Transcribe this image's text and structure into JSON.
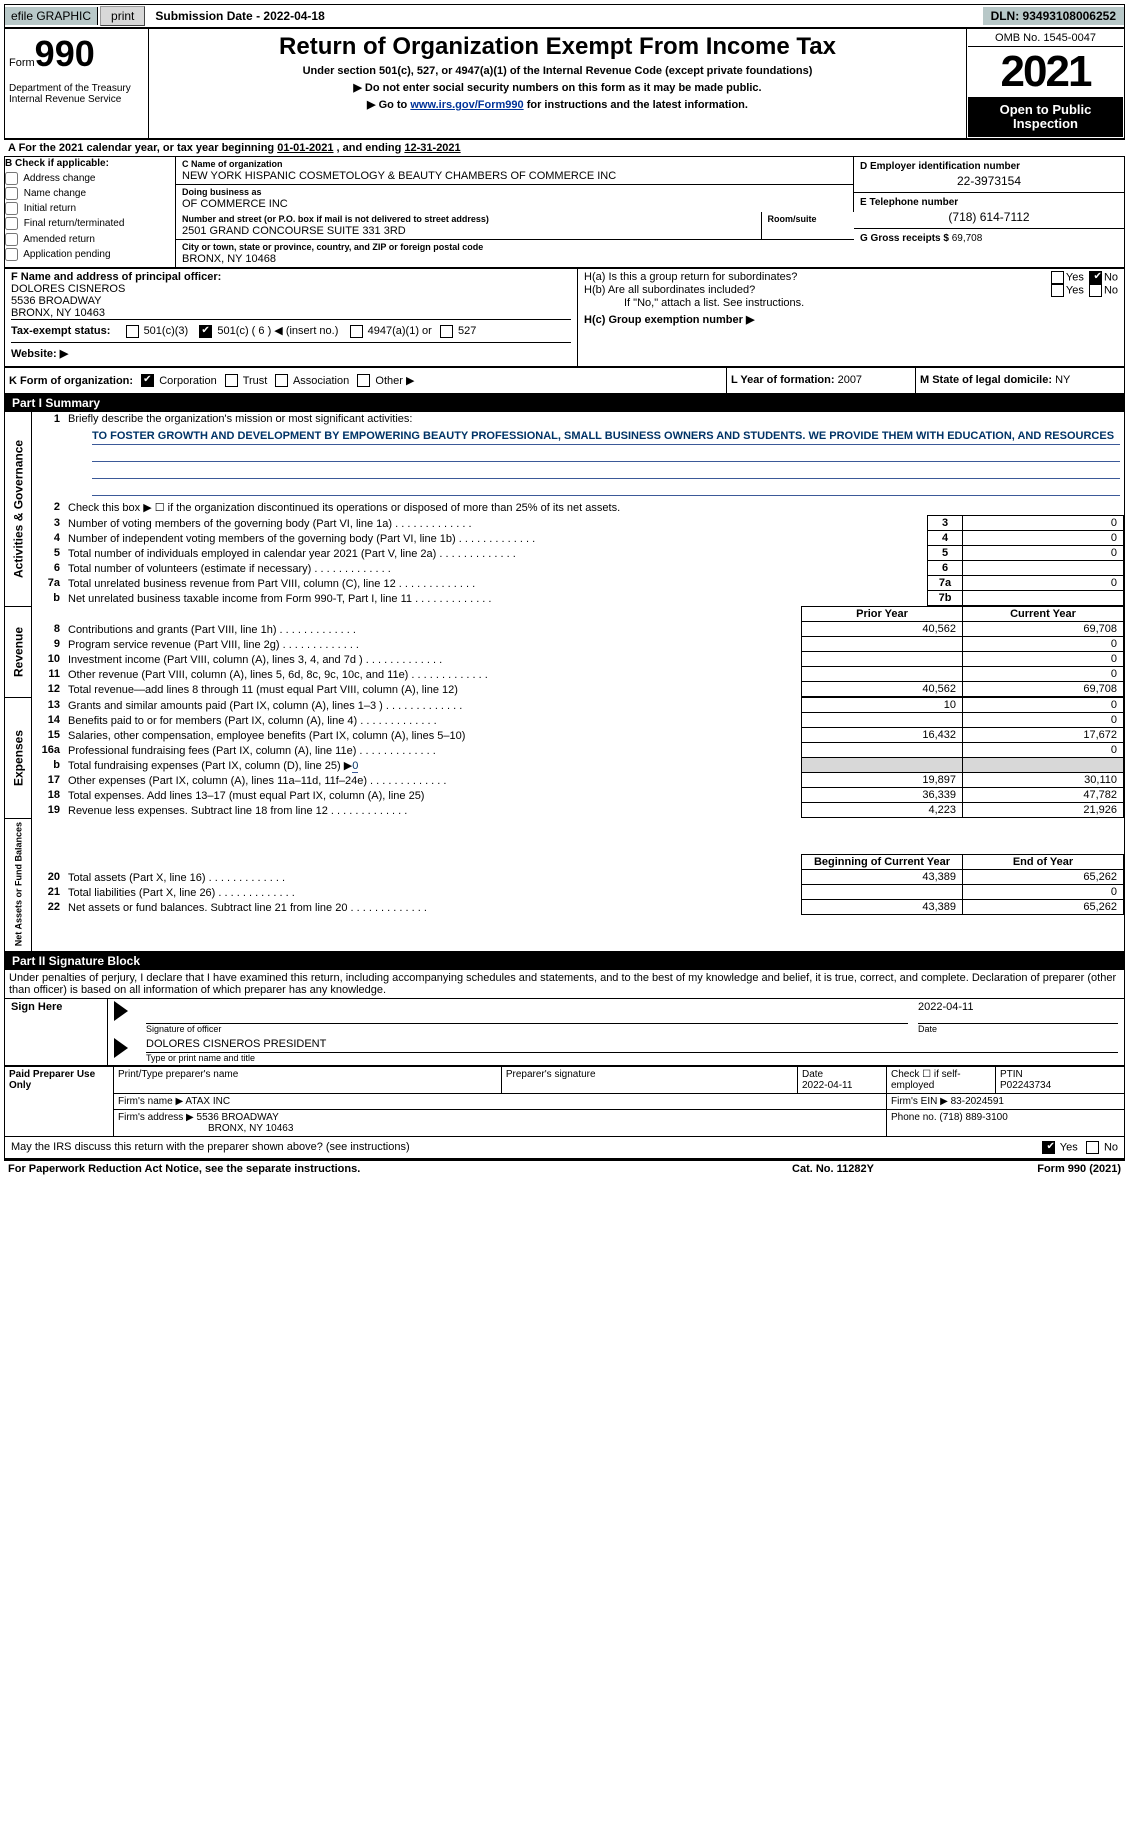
{
  "topbar": {
    "efile_lbl": "efile GRAPHIC",
    "print_btn": "print",
    "submission": "Submission Date - 2022-04-18",
    "dln": "DLN: 93493108006252"
  },
  "header": {
    "form_word": "Form",
    "form_num": "990",
    "dept": "Department of the Treasury",
    "irs": "Internal Revenue Service",
    "title": "Return of Organization Exempt From Income Tax",
    "sub1": "Under section 501(c), 527, or 4947(a)(1) of the Internal Revenue Code (except private foundations)",
    "sub2": "Do not enter social security numbers on this form as it may be made public.",
    "sub3_pre": "Go to ",
    "sub3_link": "www.irs.gov/Form990",
    "sub3_post": " for instructions and the latest information.",
    "omb": "OMB No. 1545-0047",
    "year": "2021",
    "open": "Open to Public Inspection"
  },
  "secA": {
    "text_a": "A For the 2021 calendar year, or tax year beginning ",
    "begin": "01-01-2021",
    "mid": "  , and ending ",
    "end": "12-31-2021"
  },
  "colB": {
    "hdr": "B Check if applicable:",
    "items": [
      "Address change",
      "Name change",
      "Initial return",
      "Final return/terminated",
      "Amended return",
      "Application pending"
    ]
  },
  "colC": {
    "name_lbl": "C Name of organization",
    "name": "NEW YORK HISPANIC COSMETOLOGY & BEAUTY CHAMBERS OF COMMERCE INC",
    "dba_lbl": "Doing business as",
    "dba": "OF COMMERCE INC",
    "addr_lbl": "Number and street (or P.O. box if mail is not delivered to street address)",
    "addr": "2501 GRAND CONCOURSE SUITE 331 3RD",
    "room_lbl": "Room/suite",
    "city_lbl": "City or town, state or province, country, and ZIP or foreign postal code",
    "city": "BRONX, NY  10468"
  },
  "colD": {
    "ein_lbl": "D Employer identification number",
    "ein": "22-3973154",
    "tel_lbl": "E Telephone number",
    "tel": "(718) 614-7112",
    "gross_lbl": "G Gross receipts $",
    "gross": "69,708"
  },
  "rowF": {
    "lblF": "F Name and address of principal officer:",
    "name": "DOLORES CISNEROS",
    "addr1": "5536 BROADWAY",
    "addr2": "BRONX, NY  10463",
    "lblI": "Tax-exempt status:",
    "i_501c3": "501(c)(3)",
    "i_501c": "501(c) (",
    "i_501c_n": "6",
    "i_501c_post": ") ◀ (insert no.)",
    "i_4947": "4947(a)(1) or",
    "i_527": "527",
    "lblJ": "Website: ▶"
  },
  "rowH": {
    "ha": "H(a)  Is this a group return for subordinates?",
    "hb": "H(b)  Are all subordinates included?",
    "hb_note": "If \"No,\" attach a list. See instructions.",
    "hc": "H(c)  Group exemption number ▶",
    "yes": "Yes",
    "no": "No"
  },
  "rowK": {
    "lbl": "K Form of organization:",
    "corp": "Corporation",
    "trust": "Trust",
    "assoc": "Association",
    "other": "Other ▶",
    "l_lbl": "L Year of formation:",
    "l_val": "2007",
    "m_lbl": "M State of legal domicile:",
    "m_val": "NY"
  },
  "part1": {
    "hdr": "Part I     Summary",
    "l1": "Briefly describe the organization's mission or most significant activities:",
    "mission": "TO FOSTER GROWTH AND DEVELOPMENT BY EMPOWERING BEAUTY PROFESSIONAL, SMALL BUSINESS OWNERS AND STUDENTS. WE PROVIDE THEM WITH EDUCATION, AND RESOURCES",
    "l2": "Check this box ▶ ☐  if the organization discontinued its operations or disposed of more than 25% of its net assets.",
    "l3": "Number of voting members of the governing body (Part VI, line 1a)",
    "l4": "Number of independent voting members of the governing body (Part VI, line 1b)",
    "l5": "Total number of individuals employed in calendar year 2021 (Part V, line 2a)",
    "l6": "Total number of volunteers (estimate if necessary)",
    "l7a": "Total unrelated business revenue from Part VIII, column (C), line 12",
    "l7b": "Net unrelated business taxable income from Form 990-T, Part I, line 11",
    "v3": "0",
    "v4": "0",
    "v5": "0",
    "v6": "",
    "v7a": "0",
    "v7b": "",
    "prior_hdr": "Prior Year",
    "curr_hdr": "Current Year",
    "l8": "Contributions and grants (Part VIII, line 1h)",
    "l9": "Program service revenue (Part VIII, line 2g)",
    "l10": "Investment income (Part VIII, column (A), lines 3, 4, and 7d )",
    "l11": "Other revenue (Part VIII, column (A), lines 5, 6d, 8c, 9c, 10c, and 11e)",
    "l12": "Total revenue—add lines 8 through 11 (must equal Part VIII, column (A), line 12)",
    "p8": "40,562",
    "c8": "69,708",
    "p9": "",
    "c9": "0",
    "p10": "",
    "c10": "0",
    "p11": "",
    "c11": "0",
    "p12": "40,562",
    "c12": "69,708",
    "l13": "Grants and similar amounts paid (Part IX, column (A), lines 1–3 )",
    "l14": "Benefits paid to or for members (Part IX, column (A), line 4)",
    "l15": "Salaries, other compensation, employee benefits (Part IX, column (A), lines 5–10)",
    "l16a": "Professional fundraising fees (Part IX, column (A), line 11e)",
    "l16b_pre": "Total fundraising expenses (Part IX, column (D), line 25) ▶",
    "l16b_val": "0",
    "l17": "Other expenses (Part IX, column (A), lines 11a–11d, 11f–24e)",
    "l18": "Total expenses. Add lines 13–17 (must equal Part IX, column (A), line 25)",
    "l19": "Revenue less expenses. Subtract line 18 from line 12",
    "p13": "10",
    "c13": "0",
    "p14": "",
    "c14": "0",
    "p15": "16,432",
    "c15": "17,672",
    "p16a": "",
    "c16a": "0",
    "p17": "19,897",
    "c17": "30,110",
    "p18": "36,339",
    "c18": "47,782",
    "p19": "4,223",
    "c19": "21,926",
    "boy_hdr": "Beginning of Current Year",
    "eoy_hdr": "End of Year",
    "l20": "Total assets (Part X, line 16)",
    "l21": "Total liabilities (Part X, line 26)",
    "l22": "Net assets or fund balances. Subtract line 21 from line 20",
    "p20": "43,389",
    "c20": "65,262",
    "p21": "",
    "c21": "0",
    "p22": "43,389",
    "c22": "65,262",
    "side_ag": "Activities & Governance",
    "side_rev": "Revenue",
    "side_exp": "Expenses",
    "side_na": "Net Assets or Fund Balances"
  },
  "part2": {
    "hdr": "Part II     Signature Block",
    "perjury": "Under penalties of perjury, I declare that I have examined this return, including accompanying schedules and statements, and to the best of my knowledge and belief, it is true, correct, and complete. Declaration of preparer (other than officer) is based on all information of which preparer has any knowledge.",
    "sign_here": "Sign Here",
    "sig_officer": "Signature of officer",
    "sig_date": "Date",
    "sig_date_val": "2022-04-11",
    "officer_name": "DOLORES CISNEROS  PRESIDENT",
    "type_name": "Type or print name and title",
    "paid": "Paid Preparer Use Only",
    "pt_name_lbl": "Print/Type preparer's name",
    "pt_sig_lbl": "Preparer's signature",
    "pt_date_lbl": "Date",
    "pt_date_val": "2022-04-11",
    "pt_se_lbl": "Check ☐ if self-employed",
    "pt_ptin_lbl": "PTIN",
    "pt_ptin": "P02243734",
    "firm_name_lbl": "Firm's name    ▶",
    "firm_name": "ATAX INC",
    "firm_ein_lbl": "Firm's EIN ▶",
    "firm_ein": "83-2024591",
    "firm_addr_lbl": "Firm's address ▶",
    "firm_addr1": "5536 BROADWAY",
    "firm_addr2": "BRONX, NY  10463",
    "firm_phone_lbl": "Phone no.",
    "firm_phone": "(718) 889-3100",
    "discuss": "May the IRS discuss this return with the preparer shown above? (see instructions)"
  },
  "footer": {
    "pra": "For Paperwork Reduction Act Notice, see the separate instructions.",
    "cat": "Cat. No. 11282Y",
    "form": "Form 990 (2021)"
  }
}
